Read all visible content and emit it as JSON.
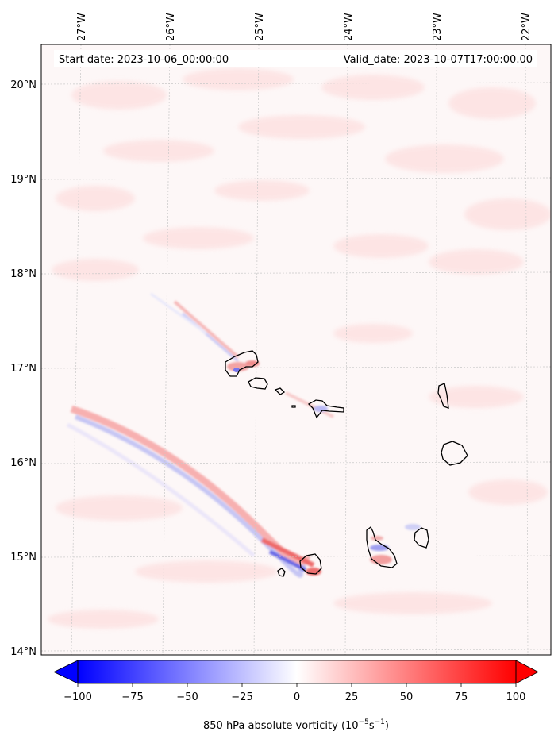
{
  "header": {
    "start_date": "Start date: 2023-10-06_00:00:00",
    "valid_date": "Valid_date: 2023-10-07T17:00:00.00"
  },
  "lon_ticks": [
    {
      "value": -27,
      "label": "27°W"
    },
    {
      "value": -26,
      "label": "26°W"
    },
    {
      "value": -25,
      "label": "25°W"
    },
    {
      "value": -24,
      "label": "24°W"
    },
    {
      "value": -23,
      "label": "23°W"
    },
    {
      "value": -22,
      "label": "22°W"
    }
  ],
  "lat_ticks": [
    {
      "value": 20,
      "label": "20°N"
    },
    {
      "value": 19,
      "label": "19°N"
    },
    {
      "value": 18,
      "label": "18°N"
    },
    {
      "value": 17,
      "label": "17°N"
    },
    {
      "value": 16,
      "label": "16°N"
    },
    {
      "value": 15,
      "label": "15°N"
    },
    {
      "value": 14,
      "label": "14°N"
    }
  ],
  "colorbar": {
    "ticks": [
      "−100",
      "−75",
      "−50",
      "−25",
      "0",
      "25",
      "50",
      "75",
      "100"
    ],
    "label_prefix": "850 hPa absolute vorticity (10",
    "label_exp1": "−5",
    "label_mid": "s",
    "label_exp2": "−1",
    "label_suffix": ")",
    "range": [
      -100,
      100
    ],
    "colormap": "bwr",
    "extend": "both"
  },
  "map": {
    "lon_range": [
      -27.1,
      -21.85
    ],
    "lat_range": [
      13.95,
      20.45
    ],
    "gridlines": true,
    "colors": {
      "coast": "#000000",
      "grid": "#c8c8c8",
      "positive": "#ff0000",
      "negative": "#0000ff"
    }
  }
}
